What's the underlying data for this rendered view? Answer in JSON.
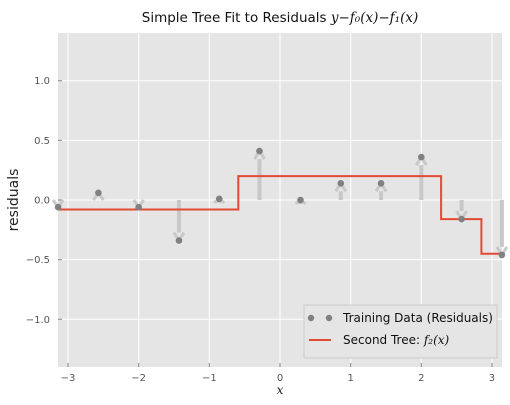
{
  "chart_data": {
    "type": "scatter",
    "title_prefix": "Simple Tree Fit to Residuals ",
    "title_math": "y−f₀(x)−f₁(x)",
    "xlabel": "x",
    "ylabel": "residuals",
    "xlim": [
      -3.14159,
      3.14159
    ],
    "ylim": [
      -1.4,
      1.4
    ],
    "xticks": [
      -3,
      -2,
      -1,
      0,
      1,
      2,
      3
    ],
    "xtick_labels": [
      "−3",
      "−2",
      "−1",
      "0",
      "1",
      "2",
      "3"
    ],
    "yticks": [
      -1.0,
      -0.5,
      0.0,
      0.5,
      1.0
    ],
    "ytick_labels": [
      "−1.0",
      "−0.5",
      "0.0",
      "0.5",
      "1.0"
    ],
    "grid": true,
    "legend_placement": "lower-right",
    "series": [
      {
        "name": "Training Data (Residuals)",
        "kind": "scatter",
        "color": "#808080",
        "x": [
          -3.14,
          -2.57,
          -2.0,
          -1.43,
          -0.86,
          -0.29,
          0.29,
          0.86,
          1.43,
          2.0,
          2.57,
          3.14
        ],
        "y": [
          -0.06,
          0.06,
          -0.06,
          -0.34,
          0.01,
          0.41,
          0.0,
          0.14,
          0.14,
          0.36,
          -0.16,
          -0.46
        ]
      },
      {
        "name_prefix": "Second Tree: ",
        "name_math": "f₂(x)",
        "kind": "step",
        "color": "#E24A33",
        "x": [
          -3.14159,
          -0.59,
          -0.59,
          2.28,
          2.28,
          2.85,
          2.85,
          3.14159
        ],
        "y": [
          -0.08,
          -0.08,
          0.2,
          0.2,
          -0.16,
          -0.16,
          -0.45,
          -0.45
        ]
      }
    ],
    "arrow_color": "#C8C8C8"
  }
}
